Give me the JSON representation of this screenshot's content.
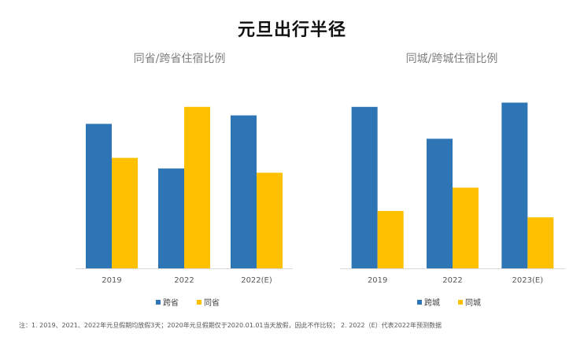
{
  "title": "元旦出行半径",
  "colors": {
    "blue": "#2E75B6",
    "orange": "#FFC000",
    "axis": "#D9D9D9"
  },
  "chart_data": [
    {
      "type": "bar",
      "title": "同省/跨省住宿比例",
      "categories": [
        "2019",
        "2022",
        "2022(E)"
      ],
      "series": [
        {
          "name": "跨省",
          "values": [
            0.68,
            0.47,
            0.72
          ]
        },
        {
          "name": "同省",
          "values": [
            0.52,
            0.76,
            0.45
          ]
        }
      ],
      "ylim": [
        0,
        0.8
      ],
      "legend": "bottom",
      "grid": false
    },
    {
      "type": "bar",
      "title": "同城/跨城住宿比例",
      "categories": [
        "2019",
        "2022",
        "2023(E)"
      ],
      "series": [
        {
          "name": "跨城",
          "values": [
            0.76,
            0.61,
            0.78
          ]
        },
        {
          "name": "同城",
          "values": [
            0.27,
            0.38,
            0.24
          ]
        }
      ],
      "ylim": [
        0,
        0.8
      ],
      "legend": "bottom",
      "grid": false
    }
  ],
  "footnote": "注：1. 2019、2021、2022年元旦假期均放假3天；2020年元旦假期仅于2020.01.01当天放假，因此不作比较；  2. 2022（E）代表2022年预测数据"
}
